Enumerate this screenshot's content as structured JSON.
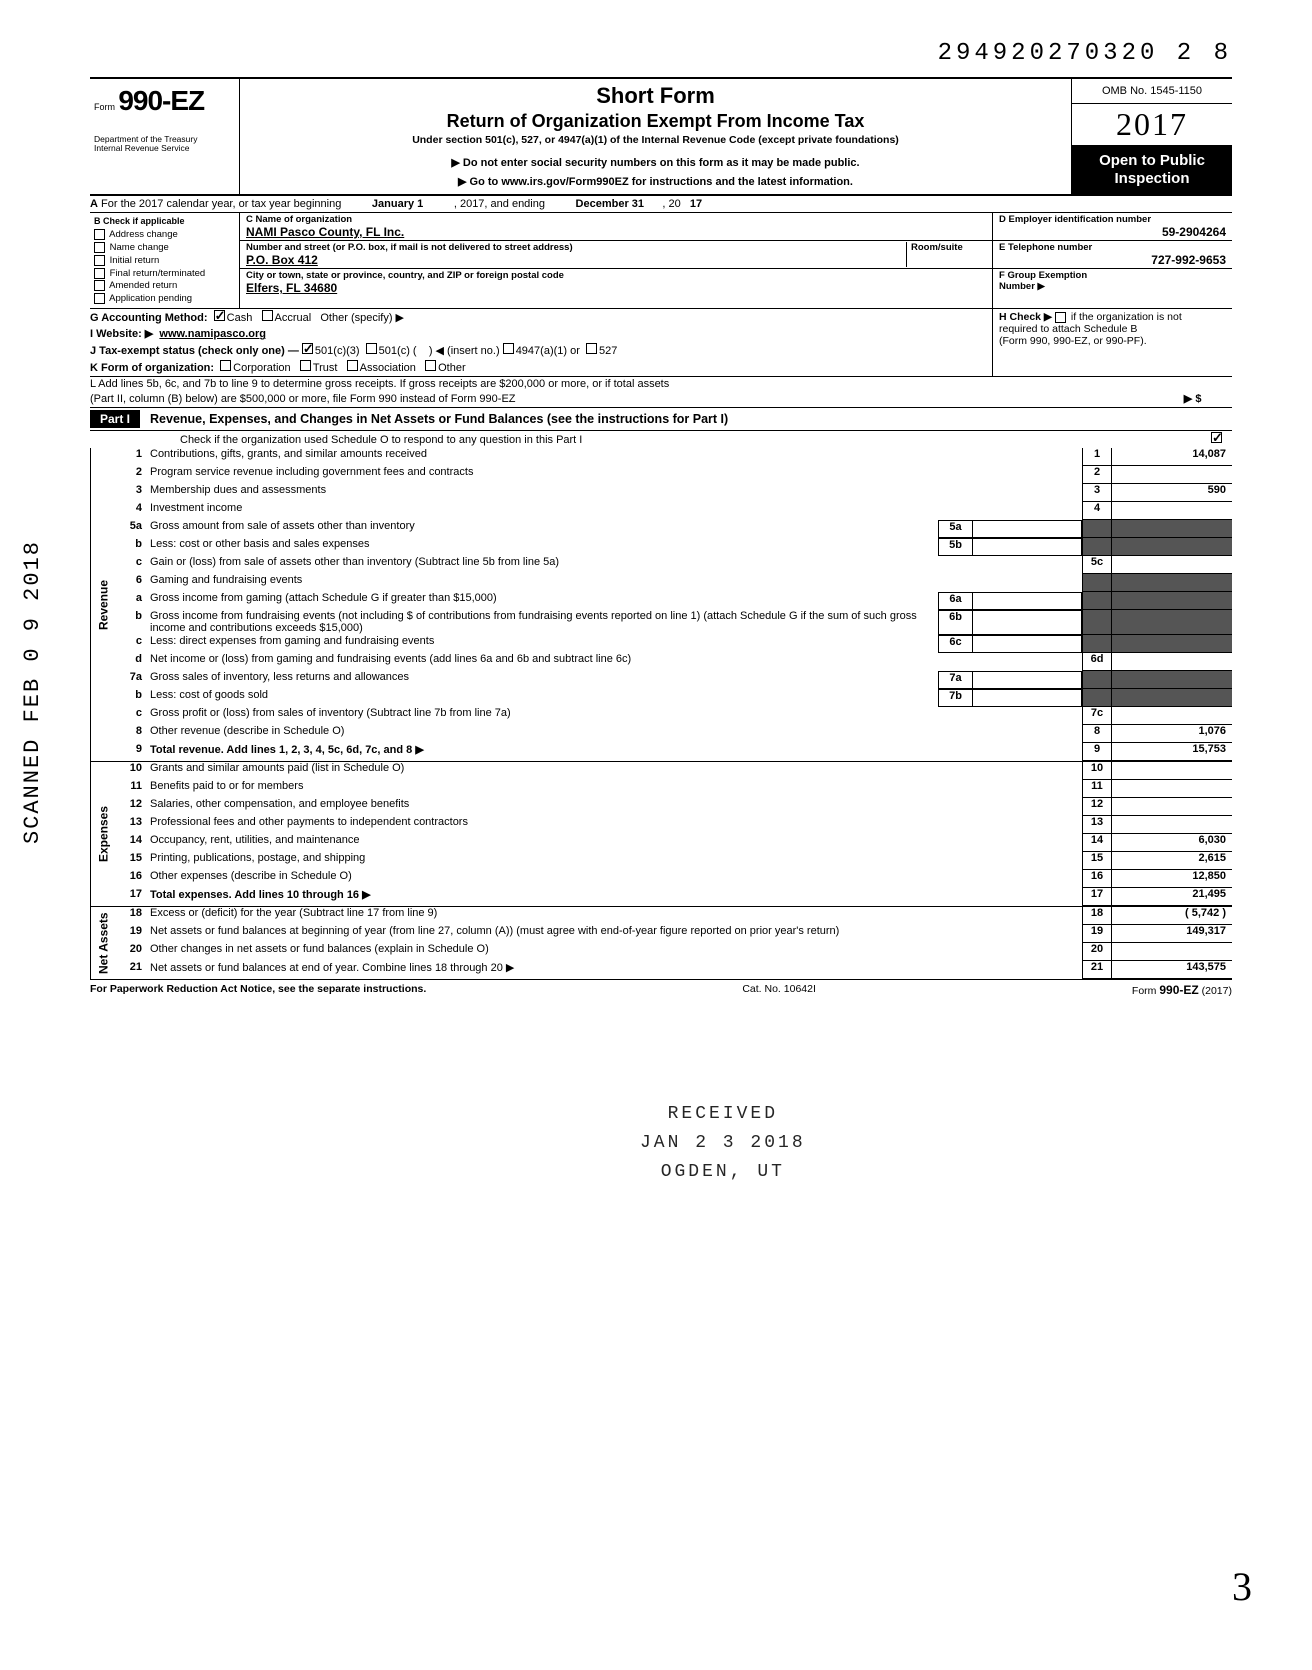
{
  "top_code": "294920270320 2   8",
  "header": {
    "form_prefix": "Form",
    "form_number": "990-EZ",
    "title_line1": "Short Form",
    "title_line2": "Return of Organization Exempt From Income Tax",
    "subtitle": "Under section 501(c), 527, or 4947(a)(1) of the Internal Revenue Code (except private foundations)",
    "hint1": "▶ Do not enter social security numbers on this form as it may be made public.",
    "hint2": "▶ Go to www.irs.gov/Form990EZ for instructions and the latest information.",
    "dept1": "Department of the Treasury",
    "dept2": "Internal Revenue Service",
    "omb": "OMB No. 1545-1150",
    "year": "2017",
    "inspect1": "Open to Public",
    "inspect2": "Inspection"
  },
  "row_a": {
    "prefix": "A",
    "text": "For the 2017 calendar year, or tax year beginning",
    "begin": "January 1",
    "mid": ", 2017, and ending",
    "end": "December 31",
    "suffix": ", 20",
    "yr": "17"
  },
  "check_b": {
    "head": "B Check if applicable",
    "items": [
      "Address change",
      "Name change",
      "Initial return",
      "Final return/terminated",
      "Amended return",
      "Application pending"
    ]
  },
  "org": {
    "c_label": "C Name of organization",
    "name": "NAMI Pasco County, FL Inc.",
    "addr_label": "Number and street (or P.O. box, if mail is not delivered to street address)",
    "room_label": "Room/suite",
    "addr": "P.O. Box 412",
    "city_label": "City or town, state or province, country, and ZIP or foreign postal code",
    "city": "Elfers, FL  34680"
  },
  "right_info": {
    "d_label": "D Employer identification number",
    "d_val": "59-2904264",
    "e_label": "E Telephone number",
    "e_val": "727-992-9653",
    "f_label": "F Group Exemption",
    "f_label2": "Number ▶"
  },
  "lines_ghk": {
    "g": "G Accounting Method:",
    "g_cash": "Cash",
    "g_accrual": "Accrual",
    "g_other": "Other (specify) ▶",
    "i": "I  Website: ▶",
    "i_val": "www.namipasco.org",
    "j": "J Tax-exempt status (check only one) —",
    "j1": "501(c)(3)",
    "j2": "501(c) (",
    "j2b": ") ◀ (insert no.)",
    "j3": "4947(a)(1) or",
    "j4": "527",
    "k": "K Form of organization:",
    "k1": "Corporation",
    "k2": "Trust",
    "k3": "Association",
    "k4": "Other",
    "h1": "H Check ▶",
    "h2": "if the organization is not",
    "h3": "required to attach Schedule B",
    "h4": "(Form 990, 990-EZ, or 990-PF)."
  },
  "line_l": {
    "l1": "L Add lines 5b, 6c, and 7b to line 9 to determine gross receipts. If gross receipts are $200,000 or more, or if total assets",
    "l2": "(Part II, column (B) below) are $500,000 or more, file Form 990 instead of Form 990-EZ",
    "arrow": "▶  $"
  },
  "part1": {
    "tag": "Part I",
    "title": "Revenue, Expenses, and Changes in Net Assets or Fund Balances (see the instructions for Part I)",
    "schedO": "Check if the organization used Schedule O to respond to any question in this Part I"
  },
  "side_labels": {
    "revenue": "Revenue",
    "expenses": "Expenses",
    "netassets": "Net Assets"
  },
  "rows": [
    {
      "n": "1",
      "d": "Contributions, gifts, grants, and similar amounts received",
      "rn": "1",
      "rv": "14,087"
    },
    {
      "n": "2",
      "d": "Program service revenue including government fees and contracts",
      "rn": "2",
      "rv": ""
    },
    {
      "n": "3",
      "d": "Membership dues and assessments",
      "rn": "3",
      "rv": "590"
    },
    {
      "n": "4",
      "d": "Investment income",
      "rn": "4",
      "rv": ""
    },
    {
      "n": "5a",
      "d": "Gross amount from sale of assets other than inventory",
      "in": "5a",
      "iv": "",
      "shade": true
    },
    {
      "n": "b",
      "d": "Less: cost or other basis and sales expenses",
      "in": "5b",
      "iv": "",
      "shade": true
    },
    {
      "n": "c",
      "d": "Gain or (loss) from sale of assets other than inventory (Subtract line 5b from line 5a)",
      "rn": "5c",
      "rv": ""
    },
    {
      "n": "6",
      "d": "Gaming and fundraising events",
      "shade": true
    },
    {
      "n": "a",
      "d": "Gross income from gaming (attach Schedule G if greater than $15,000)",
      "in": "6a",
      "iv": "",
      "shade": true
    },
    {
      "n": "b",
      "d": "Gross income from fundraising events (not including  $                       of contributions from fundraising events reported on line 1) (attach Schedule G if the sum of such gross income and contributions exceeds $15,000)",
      "in": "6b",
      "iv": "",
      "shade": true
    },
    {
      "n": "c",
      "d": "Less: direct expenses from gaming and fundraising events",
      "in": "6c",
      "iv": "",
      "shade": true
    },
    {
      "n": "d",
      "d": "Net income or (loss) from gaming and fundraising events (add lines 6a and 6b and subtract line 6c)",
      "rn": "6d",
      "rv": ""
    },
    {
      "n": "7a",
      "d": "Gross sales of inventory, less returns and allowances",
      "in": "7a",
      "iv": "",
      "shade": true
    },
    {
      "n": "b",
      "d": "Less: cost of goods sold",
      "in": "7b",
      "iv": "",
      "shade": true
    },
    {
      "n": "c",
      "d": "Gross profit or (loss) from sales of inventory (Subtract line 7b from line 7a)",
      "rn": "7c",
      "rv": ""
    },
    {
      "n": "8",
      "d": "Other revenue (describe in Schedule O)",
      "rn": "8",
      "rv": "1,076"
    },
    {
      "n": "9",
      "d": "Total revenue. Add lines 1, 2, 3, 4, 5c, 6d, 7c, and 8",
      "rn": "9",
      "rv": "15,753",
      "bold": true,
      "arrow": true
    }
  ],
  "exp_rows": [
    {
      "n": "10",
      "d": "Grants and similar amounts paid (list in Schedule O)",
      "rn": "10",
      "rv": ""
    },
    {
      "n": "11",
      "d": "Benefits paid to or for members",
      "rn": "11",
      "rv": ""
    },
    {
      "n": "12",
      "d": "Salaries, other compensation, and employee benefits",
      "rn": "12",
      "rv": ""
    },
    {
      "n": "13",
      "d": "Professional fees and other payments to independent contractors",
      "rn": "13",
      "rv": ""
    },
    {
      "n": "14",
      "d": "Occupancy, rent, utilities, and maintenance",
      "rn": "14",
      "rv": "6,030"
    },
    {
      "n": "15",
      "d": "Printing, publications, postage, and shipping",
      "rn": "15",
      "rv": "2,615"
    },
    {
      "n": "16",
      "d": "Other expenses (describe in Schedule O)",
      "rn": "16",
      "rv": "12,850"
    },
    {
      "n": "17",
      "d": "Total expenses. Add lines 10 through 16",
      "rn": "17",
      "rv": "21,495",
      "bold": true,
      "arrow": true
    }
  ],
  "na_rows": [
    {
      "n": "18",
      "d": "Excess or (deficit) for the year (Subtract line 17 from line 9)",
      "rn": "18",
      "rv": "( 5,742 )"
    },
    {
      "n": "19",
      "d": "Net assets or fund balances at beginning of year (from line 27, column (A)) (must agree with end-of-year figure reported on prior year's return)",
      "rn": "19",
      "rv": "149,317"
    },
    {
      "n": "20",
      "d": "Other changes in net assets or fund balances (explain in Schedule O)",
      "rn": "20",
      "rv": ""
    },
    {
      "n": "21",
      "d": "Net assets or fund balances at end of year. Combine lines 18 through 20",
      "rn": "21",
      "rv": "143,575",
      "arrow": true
    }
  ],
  "footer": {
    "left": "For Paperwork Reduction Act Notice, see the separate instructions.",
    "mid": "Cat. No. 10642I",
    "right_prefix": "Form",
    "right_form": "990-EZ",
    "right_year": "(2017)"
  },
  "stamps": {
    "scanned": "SCANNED  FEB 0 9 2018",
    "received_1": "RECEIVED",
    "received_2": "JAN 2 3 2018",
    "received_3": "OGDEN, UT",
    "hand": "3"
  }
}
